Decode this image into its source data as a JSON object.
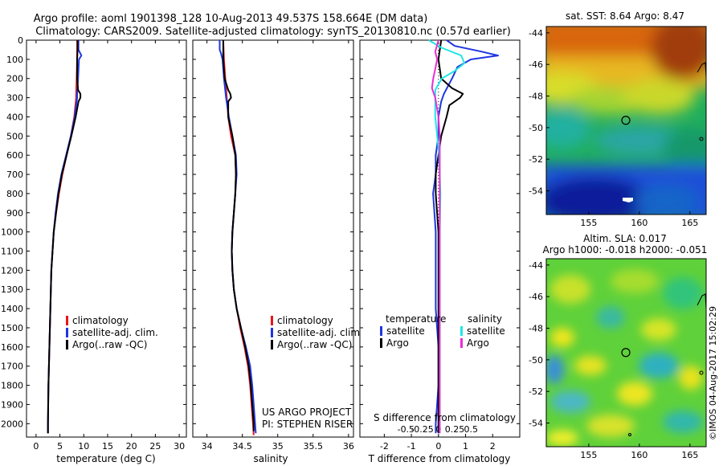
{
  "header": {
    "line1": "Argo profile: aoml 1901398_128 10-Aug-2013 49.537S 158.664E (DM data)",
    "line2": "Climatology: CARS2009. Satellite-adjusted climatology: synTS_20130810.nc (0.57d earlier)"
  },
  "colors": {
    "climatology": "#e8151c",
    "satellite": "#1f36e0",
    "argo": "#000000",
    "satellite_salinity": "#22e6e6",
    "argo_salinity": "#e82fd3"
  },
  "chart_data": [
    {
      "type": "line",
      "panel": "temperature",
      "xlabel": "temperature (deg C)",
      "xticks": [
        0,
        5,
        10,
        15,
        20,
        25,
        30
      ],
      "xlim": [
        -2,
        31.5
      ],
      "ylabel_ticks": [
        0,
        100,
        200,
        300,
        400,
        500,
        600,
        700,
        800,
        900,
        1000,
        1100,
        1200,
        1300,
        1400,
        1500,
        1600,
        1700,
        1800,
        1900,
        2000
      ],
      "ylim": [
        0,
        2070
      ],
      "y_inverted": true,
      "legend": [
        "climatology",
        "satellite-adj. clim.",
        "Argo(..raw -QC)"
      ],
      "series": [
        {
          "name": "climatology",
          "color": "#e8151c",
          "depth": [
            0,
            50,
            100,
            200,
            280,
            300,
            400,
            500,
            600,
            700,
            800,
            900,
            1000,
            1200,
            1400,
            1600,
            1800,
            2000,
            2050
          ],
          "values": [
            8.6,
            8.6,
            8.6,
            8.5,
            8.4,
            8.4,
            8.0,
            7.3,
            6.4,
            5.5,
            4.8,
            4.2,
            3.7,
            3.2,
            3.0,
            2.8,
            2.6,
            2.5,
            2.5
          ]
        },
        {
          "name": "satellite-adj. clim.",
          "color": "#1f36e0",
          "depth": [
            0,
            50,
            80,
            100,
            200,
            280,
            300,
            400,
            500,
            600,
            700,
            800,
            900,
            1000,
            1200,
            1400,
            1600,
            1800,
            2000,
            2050
          ],
          "values": [
            8.9,
            8.9,
            9.5,
            9.0,
            8.8,
            8.6,
            8.6,
            8.1,
            7.3,
            6.3,
            5.3,
            4.6,
            4.1,
            3.7,
            3.2,
            3.0,
            2.8,
            2.6,
            2.5,
            2.5
          ]
        },
        {
          "name": "Argo(..raw -QC)",
          "color": "#000000",
          "depth": [
            0,
            50,
            100,
            200,
            260,
            280,
            300,
            320,
            400,
            500,
            600,
            700,
            800,
            900,
            1000,
            1200,
            1400,
            1600,
            1800,
            2000,
            2050
          ],
          "values": [
            8.7,
            8.7,
            8.6,
            8.6,
            8.8,
            9.3,
            9.3,
            8.9,
            8.3,
            7.4,
            6.4,
            5.4,
            4.7,
            4.2,
            3.7,
            3.2,
            3.0,
            2.8,
            2.6,
            2.5,
            2.5
          ]
        }
      ]
    },
    {
      "type": "line",
      "panel": "salinity",
      "xlabel": "salinity",
      "xticks": [
        34,
        34.5,
        35,
        35.5,
        36
      ],
      "xlim": [
        33.8,
        36.07
      ],
      "ylim": [
        0,
        2070
      ],
      "y_inverted": true,
      "legend": [
        "climatology",
        "satellite-adj. clim.",
        "Argo(..raw -QC)"
      ],
      "annotation": [
        "US ARGO PROJECT",
        "PI: STEPHEN RISER"
      ],
      "series": [
        {
          "name": "climatology",
          "color": "#e8151c",
          "depth": [
            0,
            100,
            200,
            300,
            400,
            500,
            600,
            700,
            800,
            900,
            1000,
            1100,
            1200,
            1300,
            1400,
            1500,
            1600,
            1700,
            1800,
            1900,
            2000,
            2060
          ],
          "values": [
            34.23,
            34.24,
            34.26,
            34.28,
            34.3,
            34.34,
            34.4,
            34.41,
            34.4,
            34.38,
            34.36,
            34.35,
            34.36,
            34.38,
            34.42,
            34.47,
            34.53,
            34.58,
            34.61,
            34.63,
            34.65,
            34.66
          ]
        },
        {
          "name": "satellite-adj. clim.",
          "color": "#1f36e0",
          "depth": [
            0,
            50,
            70,
            100,
            200,
            300,
            400,
            500,
            600,
            700,
            800,
            900,
            1000,
            1100,
            1200,
            1300,
            1400,
            1500,
            1600,
            1700,
            1800,
            1900,
            2000,
            2050
          ],
          "values": [
            34.18,
            34.18,
            34.2,
            34.22,
            34.24,
            34.27,
            34.31,
            34.36,
            34.41,
            34.42,
            34.4,
            34.38,
            34.36,
            34.35,
            34.36,
            34.38,
            34.42,
            34.48,
            34.55,
            34.61,
            34.64,
            34.66,
            34.68,
            34.69
          ]
        },
        {
          "name": "Argo(..raw -QC)",
          "color": "#000000",
          "depth": [
            0,
            100,
            200,
            260,
            280,
            300,
            320,
            400,
            500,
            600,
            700,
            800,
            900,
            1000,
            1100,
            1200,
            1300,
            1400,
            1500,
            1600,
            1700,
            1800,
            1900,
            2000,
            2040
          ],
          "values": [
            34.23,
            34.23,
            34.25,
            34.3,
            34.33,
            34.34,
            34.3,
            34.3,
            34.36,
            34.4,
            34.41,
            34.4,
            34.38,
            34.36,
            34.35,
            34.36,
            34.38,
            34.42,
            34.48,
            34.54,
            34.59,
            34.62,
            34.64,
            34.66,
            34.66
          ]
        }
      ]
    },
    {
      "type": "line",
      "panel": "difference",
      "xlabel": "T difference from climatology",
      "xlabel_top": "S difference from climatology",
      "xticks": [
        -2,
        -1,
        0,
        1,
        2
      ],
      "xticks_top": [
        -0.5,
        -0.25,
        0,
        0.25,
        0.5
      ],
      "xlim": [
        -2.9,
        3.0
      ],
      "ylim": [
        0,
        2070
      ],
      "y_inverted": true,
      "legend_temperature": [
        "temperature",
        "satellite",
        "Argo"
      ],
      "legend_salinity": [
        "salinity",
        "satellite",
        "Argo"
      ],
      "series": [
        {
          "name": "satellite",
          "group": "temperature",
          "color": "#1f36e0",
          "depth": [
            0,
            30,
            60,
            80,
            100,
            140,
            200,
            280,
            320,
            400,
            500,
            600,
            700,
            800,
            1000,
            1200,
            1400,
            1600,
            1800,
            2000,
            2050
          ],
          "values": [
            0.3,
            0.6,
            1.6,
            2.2,
            1.2,
            0.7,
            0.5,
            0.2,
            0.1,
            0.0,
            0.0,
            -0.1,
            -0.1,
            -0.2,
            -0.1,
            -0.1,
            -0.1,
            0.0,
            0.0,
            -0.1,
            -0.1
          ]
        },
        {
          "name": "Argo",
          "group": "temperature",
          "color": "#000000",
          "depth": [
            0,
            100,
            200,
            250,
            280,
            300,
            340,
            400,
            500,
            600,
            700,
            800,
            1000,
            1200,
            1400,
            1600,
            1800,
            2000,
            2050
          ],
          "values": [
            0.1,
            0.0,
            0.1,
            0.5,
            0.9,
            0.8,
            0.4,
            0.3,
            0.1,
            0.0,
            -0.1,
            -0.1,
            0.0,
            0.0,
            0.0,
            0.0,
            0.0,
            0.0,
            0.0
          ]
        },
        {
          "name": "satellite",
          "group": "salinity",
          "color": "#22e6e6",
          "depth": [
            0,
            40,
            80,
            120,
            160,
            200,
            260,
            320,
            400,
            500,
            600,
            700,
            800,
            1000,
            1200,
            1400,
            1600,
            1800,
            2000,
            2050
          ],
          "values": [
            -0.15,
            0.05,
            0.35,
            0.4,
            0.25,
            0.05,
            -0.05,
            -0.05,
            -0.05,
            -0.02,
            0.01,
            0.02,
            0.03,
            0.02,
            0.02,
            0.02,
            0.02,
            0.02,
            0.02,
            0.02
          ]
        },
        {
          "name": "Argo",
          "group": "salinity",
          "color": "#e82fd3",
          "depth": [
            0,
            60,
            100,
            150,
            200,
            250,
            300,
            400,
            500,
            600,
            700,
            800,
            1000,
            1200,
            1400,
            1600,
            1800,
            2000,
            2050
          ],
          "values": [
            0.0,
            -0.05,
            -0.02,
            -0.05,
            -0.08,
            -0.1,
            -0.05,
            0.0,
            0.02,
            0.02,
            0.02,
            0.02,
            0.02,
            0.02,
            0.02,
            0.02,
            0.02,
            0.02,
            0.02
          ]
        }
      ]
    },
    {
      "type": "heatmap",
      "panel": "sst_map",
      "title": "sat. SST: 8.64  Argo: 8.47",
      "xticks": [
        155,
        160,
        165
      ],
      "yticks": [
        -44,
        -46,
        -48,
        -50,
        -52,
        -54
      ],
      "xlim": [
        150.8,
        166.6
      ],
      "ylim": [
        -55.5,
        -43.6
      ],
      "argo_position": {
        "lon": 158.664,
        "lat": -49.537
      }
    },
    {
      "type": "heatmap",
      "panel": "sla_map",
      "title_line1": "Altim. SLA: 0.017",
      "title_line2": "Argo h1000: -0.018 h2000: -0.051",
      "xticks": [
        155,
        160,
        165
      ],
      "yticks": [
        -44,
        -46,
        -48,
        -50,
        -52,
        -54
      ],
      "xlim": [
        150.8,
        166.6
      ],
      "ylim": [
        -55.5,
        -43.6
      ],
      "argo_position": {
        "lon": 158.664,
        "lat": -49.537
      }
    }
  ],
  "watermark": "©IMOS 04-Aug-2017 15:02:29"
}
